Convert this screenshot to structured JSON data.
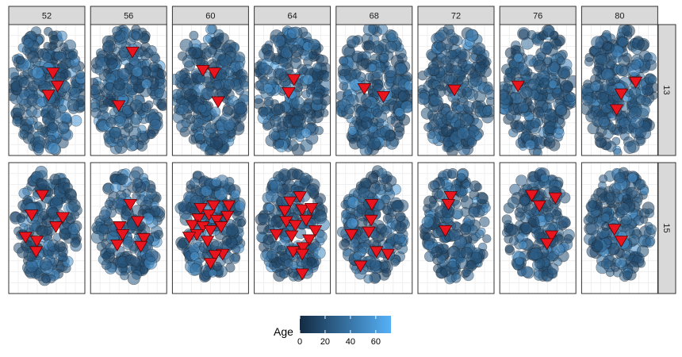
{
  "chart_data": {
    "type": "scatter",
    "title": "",
    "xlabel": "",
    "ylabel": "",
    "facet_columns": [
      "52",
      "56",
      "60",
      "64",
      "68",
      "72",
      "76",
      "80"
    ],
    "facet_rows": [
      "13",
      "15"
    ],
    "grid": true,
    "colorbar": {
      "title": "Age",
      "ticks": [
        0,
        20,
        40,
        60
      ],
      "range": [
        0,
        72
      ],
      "low_color": "#132B43",
      "high_color": "#56B1F7",
      "placement": "bottom"
    },
    "marker_color": "#e8151f",
    "panels": [
      {
        "row": "13",
        "column": "52",
        "markers": [
          [
            0.58,
            0.37
          ],
          [
            0.64,
            0.47
          ],
          [
            0.52,
            0.54
          ]
        ]
      },
      {
        "row": "13",
        "column": "56",
        "markers": [
          [
            0.55,
            0.21
          ],
          [
            0.37,
            0.62
          ]
        ]
      },
      {
        "row": "13",
        "column": "60",
        "markers": [
          [
            0.4,
            0.35
          ],
          [
            0.55,
            0.37
          ],
          [
            0.6,
            0.59
          ]
        ]
      },
      {
        "row": "13",
        "column": "64",
        "markers": [
          [
            0.52,
            0.42
          ],
          [
            0.45,
            0.52
          ]
        ]
      },
      {
        "row": "13",
        "column": "68",
        "markers": [
          [
            0.37,
            0.49
          ],
          [
            0.62,
            0.55
          ]
        ]
      },
      {
        "row": "13",
        "column": "72",
        "markers": [
          [
            0.48,
            0.5
          ]
        ]
      },
      {
        "row": "13",
        "column": "76",
        "markers": [
          [
            0.24,
            0.47
          ]
        ]
      },
      {
        "row": "13",
        "column": "80",
        "markers": [
          [
            0.71,
            0.44
          ],
          [
            0.52,
            0.53
          ],
          [
            0.46,
            0.65
          ]
        ]
      },
      {
        "row": "15",
        "column": "52",
        "markers": [
          [
            0.44,
            0.25
          ],
          [
            0.3,
            0.4
          ],
          [
            0.71,
            0.42
          ],
          [
            0.62,
            0.49
          ],
          [
            0.22,
            0.57
          ],
          [
            0.37,
            0.6
          ],
          [
            0.36,
            0.68
          ]
        ]
      },
      {
        "row": "15",
        "column": "56",
        "markers": [
          [
            0.52,
            0.32
          ],
          [
            0.62,
            0.45
          ],
          [
            0.38,
            0.49
          ],
          [
            0.42,
            0.55
          ],
          [
            0.7,
            0.58
          ],
          [
            0.35,
            0.63
          ],
          [
            0.66,
            0.64
          ]
        ]
      },
      {
        "row": "15",
        "column": "60",
        "markers": [
          [
            0.37,
            0.35
          ],
          [
            0.54,
            0.33
          ],
          [
            0.74,
            0.33
          ],
          [
            0.48,
            0.4
          ],
          [
            0.72,
            0.41
          ],
          [
            0.34,
            0.43
          ],
          [
            0.58,
            0.44
          ],
          [
            0.26,
            0.48
          ],
          [
            0.4,
            0.49
          ],
          [
            0.64,
            0.49
          ],
          [
            0.5,
            0.52
          ],
          [
            0.32,
            0.55
          ],
          [
            0.22,
            0.57
          ],
          [
            0.46,
            0.6
          ],
          [
            0.66,
            0.7
          ],
          [
            0.56,
            0.71
          ],
          [
            0.5,
            0.77
          ]
        ]
      },
      {
        "row": "15",
        "column": "64",
        "markers": [
          [
            0.6,
            0.26
          ],
          [
            0.47,
            0.3
          ],
          [
            0.4,
            0.37
          ],
          [
            0.63,
            0.36
          ],
          [
            0.75,
            0.35
          ],
          [
            0.42,
            0.45
          ],
          [
            0.68,
            0.44
          ],
          [
            0.54,
            0.48
          ],
          [
            0.8,
            0.52
          ],
          [
            0.29,
            0.55
          ],
          [
            0.49,
            0.56
          ],
          [
            0.72,
            0.59
          ],
          [
            0.64,
            0.65
          ],
          [
            0.51,
            0.68
          ],
          [
            0.63,
            0.7
          ],
          [
            0.63,
            0.85
          ]
        ]
      },
      {
        "row": "15",
        "column": "68",
        "markers": [
          [
            0.47,
            0.32
          ],
          [
            0.46,
            0.44
          ],
          [
            0.43,
            0.53
          ],
          [
            0.2,
            0.55
          ],
          [
            0.53,
            0.68
          ],
          [
            0.68,
            0.7
          ],
          [
            0.32,
            0.79
          ]
        ]
      },
      {
        "row": "15",
        "column": "72",
        "markers": [
          [
            0.43,
            0.26
          ],
          [
            0.4,
            0.32
          ],
          [
            0.36,
            0.52
          ]
        ]
      },
      {
        "row": "15",
        "column": "76",
        "markers": [
          [
            0.42,
            0.25
          ],
          [
            0.73,
            0.27
          ],
          [
            0.52,
            0.33
          ],
          [
            0.68,
            0.56
          ],
          [
            0.62,
            0.62
          ]
        ]
      },
      {
        "row": "15",
        "column": "80",
        "markers": [
          [
            0.43,
            0.51
          ],
          [
            0.52,
            0.6
          ]
        ]
      }
    ]
  }
}
